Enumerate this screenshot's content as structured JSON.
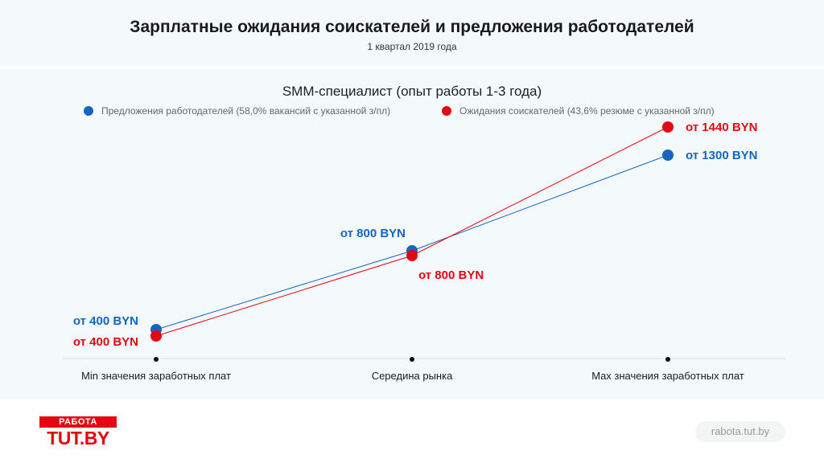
{
  "header": {
    "title": "Зарплатные ожидания соискателей и предложения работодателей",
    "subtitle": "1 квартал 2019 года"
  },
  "chart_data": {
    "type": "line",
    "title": "SMM-специалист (опыт работы 1-3 года)",
    "categories": [
      "Min значения заработных плат",
      "Середина рынка",
      "Max значения заработных плат"
    ],
    "series": [
      {
        "name": "Предложения работодателей (58,0% вакансий с указанной з/пл)",
        "color": "#1565c0",
        "values": [
          400,
          800,
          1300
        ],
        "labels": [
          "от 400 BYN",
          "от 800 BYN",
          "от 1300 BYN"
        ]
      },
      {
        "name": "Ожидания соискателей (43,6% резюме с указанной з/пл)",
        "color": "#e30613",
        "values": [
          400,
          800,
          1440
        ],
        "labels": [
          "от 400 BYN",
          "от 800 BYN",
          "от 1440 BYN"
        ]
      }
    ],
    "grid": false,
    "legend_position": "top"
  },
  "footer": {
    "logo_top": "РАБОТА",
    "logo_main": "TUT.BY",
    "site": "rabota.tut.by"
  }
}
